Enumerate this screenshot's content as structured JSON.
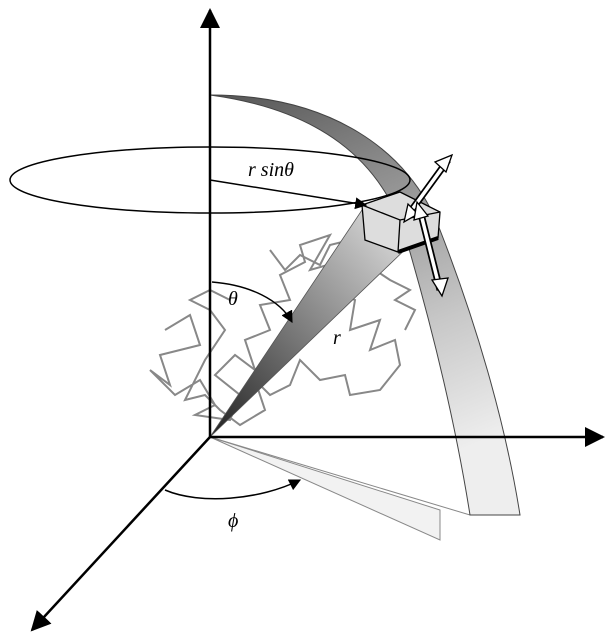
{
  "labels": {
    "r_sin_theta": "r sinθ",
    "theta": "θ",
    "r": "r",
    "phi": "ϕ"
  }
}
